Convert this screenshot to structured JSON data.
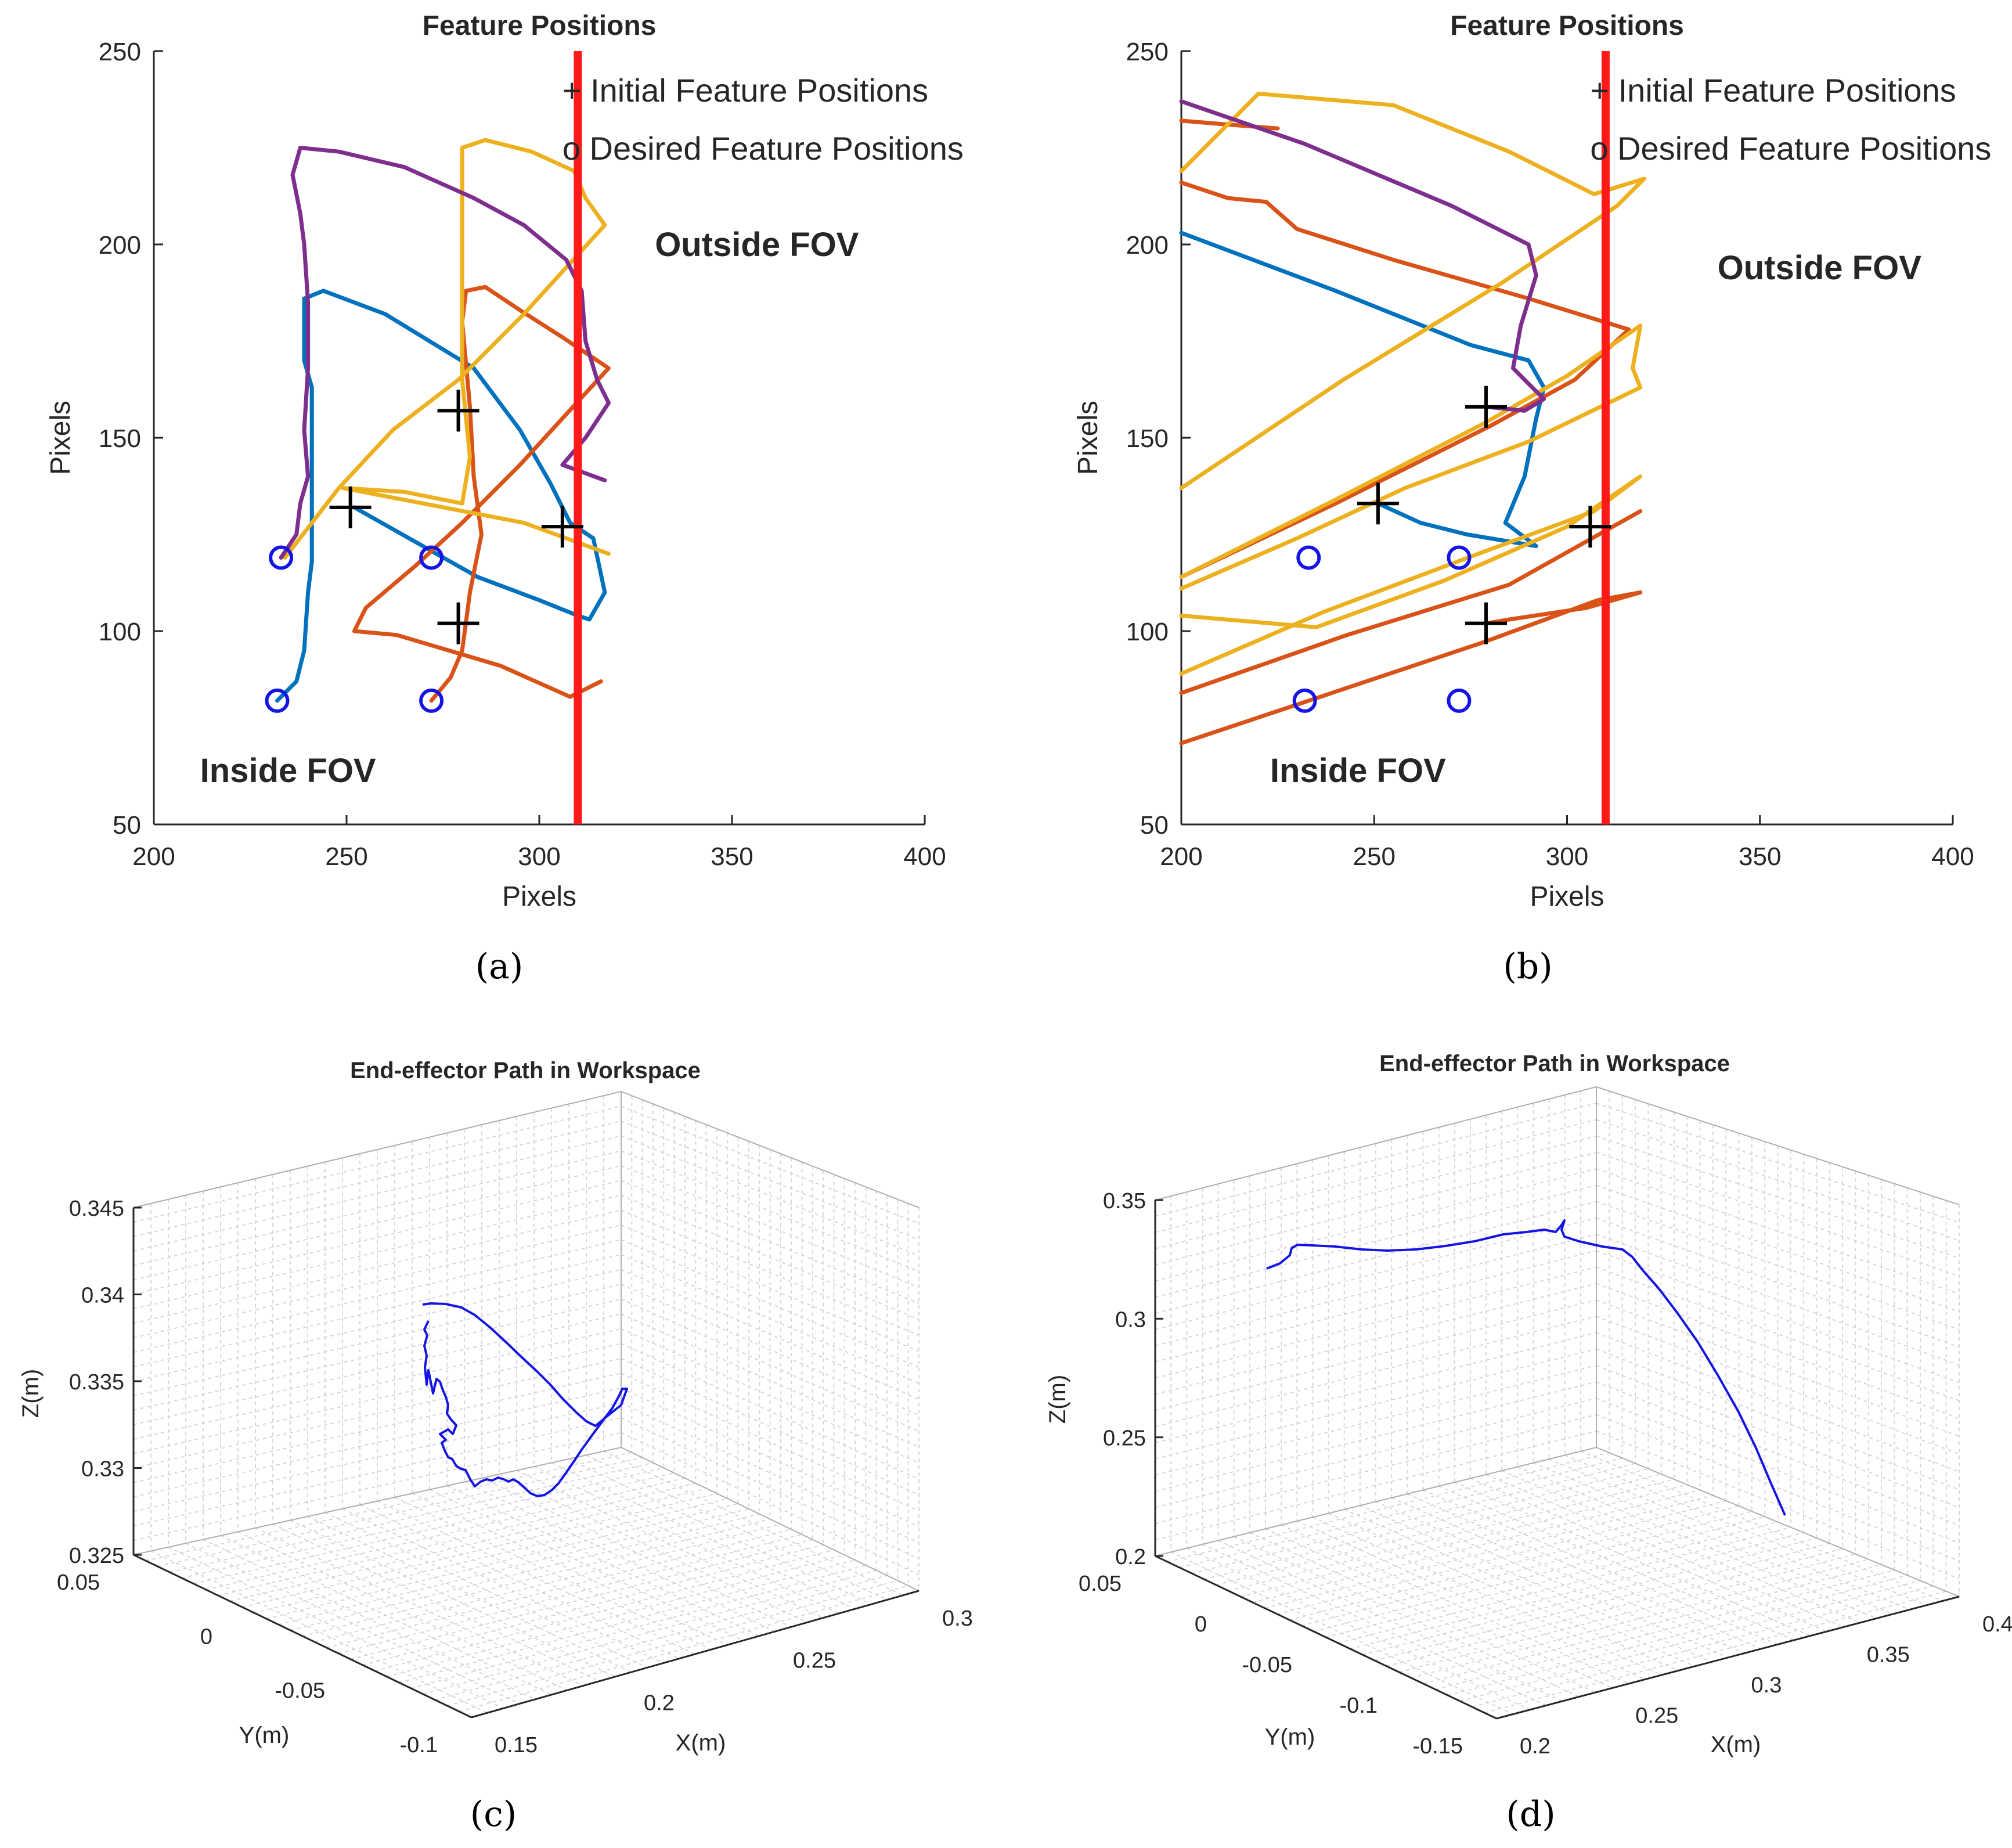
{
  "figure": {
    "captions": [
      "(a)",
      "(b)",
      "(c)",
      "(d)"
    ],
    "colors": {
      "blue": "#0072BD",
      "orange": "#D95319",
      "yellow": "#EDB120",
      "purple": "#7E2F8E",
      "fov_line": "#FF1A1A",
      "fov_text": "#E8222A",
      "path3d": "#1414E6",
      "desired_marker": "#1414E6",
      "initial_marker": "#000000"
    }
  },
  "chart_data": [
    {
      "type": "line",
      "title": "Feature Positions",
      "xlabel": "Pixels",
      "ylabel": "Pixels",
      "xlim": [
        200,
        400
      ],
      "ylim": [
        50,
        250
      ],
      "xticks": [
        200,
        250,
        300,
        350,
        400
      ],
      "yticks": [
        50,
        100,
        150,
        200,
        250
      ],
      "legend": [
        "+ Initial Feature Positions",
        "o Desired Feature Positions"
      ],
      "fov_line_x": 310,
      "annotations": [
        {
          "text": "Outside FOV",
          "x": 330,
          "y": 200
        },
        {
          "text": "Inside FOV",
          "x": 212,
          "y": 64
        }
      ],
      "initial_points": [
        [
          279,
          157
        ],
        [
          251,
          132
        ],
        [
          306,
          127
        ],
        [
          279,
          102
        ]
      ],
      "desired_points": [
        [
          233,
          119
        ],
        [
          272,
          119
        ],
        [
          232,
          82
        ],
        [
          272,
          82
        ]
      ],
      "series": [
        {
          "name": "feature-1",
          "color": "blue",
          "points": [
            [
              232,
              82
            ],
            [
              237,
              87
            ],
            [
              239,
              95
            ],
            [
              240,
              110
            ],
            [
              241,
              118
            ],
            [
              241,
              130
            ],
            [
              241,
              145
            ],
            [
              241,
              163
            ],
            [
              239,
              170
            ],
            [
              239,
              186
            ],
            [
              244,
              188
            ],
            [
              260,
              182
            ],
            [
              283,
              168
            ],
            [
              295,
              152
            ],
            [
              303,
              138
            ],
            [
              308,
              128
            ],
            [
              314,
              124
            ],
            [
              317,
              110
            ],
            [
              313,
              103
            ],
            [
              310,
              104
            ],
            [
              300,
              108
            ],
            [
              284,
              114
            ],
            [
              268,
              123
            ],
            [
              252,
              132
            ]
          ]
        },
        {
          "name": "feature-2",
          "color": "orange",
          "points": [
            [
              272,
              82
            ],
            [
              277,
              88
            ],
            [
              280,
              95
            ],
            [
              282,
              110
            ],
            [
              285,
              125
            ],
            [
              283,
              140
            ],
            [
              282,
              158
            ],
            [
              280,
              180
            ],
            [
              281,
              188
            ],
            [
              286,
              189
            ],
            [
              295,
              183
            ],
            [
              306,
              176
            ],
            [
              318,
              168
            ],
            [
              306,
              155
            ],
            [
              295,
              143
            ],
            [
              280,
              128
            ],
            [
              268,
              117
            ],
            [
              255,
              106
            ],
            [
              252,
              100
            ],
            [
              263,
              99
            ],
            [
              290,
              91
            ],
            [
              308,
              83
            ],
            [
              316,
              87
            ]
          ]
        },
        {
          "name": "feature-3",
          "color": "yellow",
          "points": [
            [
              234,
              119
            ],
            [
              248,
              137
            ],
            [
              262,
              152
            ],
            [
              279,
              165
            ],
            [
              296,
              182
            ],
            [
              317,
              205
            ],
            [
              312,
              212
            ],
            [
              309,
              219
            ],
            [
              298,
              224
            ],
            [
              286,
              227
            ],
            [
              280,
              225
            ],
            [
              280,
              210
            ],
            [
              280,
              188
            ],
            [
              280,
              165
            ],
            [
              282,
              145
            ],
            [
              280,
              133
            ],
            [
              265,
              136
            ],
            [
              249,
              137
            ],
            [
              296,
              128
            ],
            [
              318,
              120
            ]
          ]
        },
        {
          "name": "feature-4",
          "color": "purple",
          "points": [
            [
              233,
              119
            ],
            [
              237,
              125
            ],
            [
              238,
              133
            ],
            [
              240,
              140
            ],
            [
              239,
              152
            ],
            [
              240,
              168
            ],
            [
              240,
              185
            ],
            [
              239,
              200
            ],
            [
              238,
              208
            ],
            [
              236,
              218
            ],
            [
              238,
              225
            ],
            [
              248,
              224
            ],
            [
              265,
              220
            ],
            [
              283,
              212
            ],
            [
              296,
              205
            ],
            [
              307,
              196
            ],
            [
              311,
              188
            ],
            [
              312,
              175
            ],
            [
              315,
              165
            ],
            [
              318,
              159
            ],
            [
              312,
              150
            ],
            [
              306,
              143
            ],
            [
              317,
              139
            ]
          ]
        }
      ]
    },
    {
      "type": "line",
      "title": "Feature Positions",
      "xlabel": "Pixels",
      "ylabel": "Pixels",
      "xlim": [
        200,
        400
      ],
      "ylim": [
        50,
        250
      ],
      "xticks": [
        200,
        250,
        300,
        350,
        400
      ],
      "yticks": [
        50,
        100,
        150,
        200,
        250
      ],
      "legend": [
        "+ Initial Feature Positions",
        "o Desired Feature Positions"
      ],
      "fov_line_x": 310,
      "annotations": [
        {
          "text": "Outside FOV",
          "x": 339,
          "y": 194
        },
        {
          "text": "Inside FOV",
          "x": 223,
          "y": 64
        }
      ],
      "initial_points": [
        [
          279,
          158
        ],
        [
          251,
          133
        ],
        [
          306,
          127
        ],
        [
          279,
          102
        ]
      ],
      "desired_points": [
        [
          233,
          119
        ],
        [
          272,
          119
        ],
        [
          232,
          82
        ],
        [
          272,
          82
        ]
      ],
      "series": [
        {
          "name": "feature-1",
          "color": "blue",
          "points": [
            [
              200,
              203
            ],
            [
              240,
              188
            ],
            [
              275,
              174
            ],
            [
              290,
              170
            ],
            [
              294,
              163
            ],
            [
              292,
              155
            ],
            [
              289,
              140
            ],
            [
              284,
              128
            ],
            [
              292,
              122
            ],
            [
              274,
              125
            ],
            [
              262,
              128
            ],
            [
              251,
              133
            ]
          ]
        },
        {
          "name": "feature-2",
          "color": "orange",
          "points": [
            [
              200,
              71
            ],
            [
              239,
              84
            ],
            [
              278,
              97
            ],
            [
              308,
              108
            ],
            [
              319,
              110
            ],
            [
              305,
              106
            ],
            [
              285,
              103
            ],
            [
              279,
              102
            ]
          ]
        },
        {
          "name": "feature-3",
          "color": "orange",
          "points": [
            [
              200,
              84
            ],
            [
              243,
              99
            ],
            [
              285,
              112
            ],
            [
              319,
              131
            ]
          ]
        },
        {
          "name": "feature-4",
          "color": "orange",
          "points": [
            [
              200,
              114
            ],
            [
              240,
              133
            ],
            [
              280,
              153
            ],
            [
              302,
              165
            ],
            [
              316,
              178
            ],
            [
              290,
              186
            ],
            [
              255,
              196
            ],
            [
              230,
              204
            ],
            [
              222,
              211
            ],
            [
              212,
              212
            ],
            [
              200,
              216
            ]
          ]
        },
        {
          "name": "feature-5",
          "color": "orange",
          "points": [
            [
              200,
              232
            ],
            [
              212,
              231
            ],
            [
              225,
              230
            ]
          ]
        },
        {
          "name": "feature-6",
          "color": "yellow",
          "points": [
            [
              200,
              89
            ],
            [
              237,
              105
            ],
            [
              277,
              120
            ],
            [
              307,
              131
            ],
            [
              319,
              140
            ],
            [
              300,
              127
            ],
            [
              268,
              113
            ],
            [
              235,
              101
            ],
            [
              200,
              104
            ]
          ]
        },
        {
          "name": "feature-7",
          "color": "yellow",
          "points": [
            [
              200,
              114
            ],
            [
              240,
              134
            ],
            [
              279,
              154
            ],
            [
              300,
              166
            ],
            [
              319,
              179
            ],
            [
              317,
              168
            ],
            [
              319,
              163
            ],
            [
              290,
              149
            ],
            [
              258,
              137
            ],
            [
              230,
              124
            ],
            [
              200,
              111
            ]
          ]
        },
        {
          "name": "feature-8",
          "color": "yellow",
          "points": [
            [
              200,
              137
            ],
            [
              242,
              165
            ],
            [
              283,
              190
            ],
            [
              313,
              210
            ],
            [
              320,
              217
            ],
            [
              307,
              213
            ],
            [
              285,
              224
            ],
            [
              255,
              236
            ],
            [
              220,
              239
            ],
            [
              200,
              219
            ]
          ]
        },
        {
          "name": "feature-9",
          "color": "purple",
          "points": [
            [
              200,
              237
            ],
            [
              232,
              226
            ],
            [
              270,
              210
            ],
            [
              290,
              200
            ],
            [
              292,
              192
            ],
            [
              288,
              179
            ],
            [
              286,
              168
            ],
            [
              294,
              160
            ],
            [
              289,
              157
            ],
            [
              279,
              158
            ]
          ]
        }
      ]
    },
    {
      "type": "line3d",
      "title": "End-effector Path in Workspace",
      "xlabel": "X(m)",
      "ylabel": "Y(m)",
      "zlabel": "Z(m)",
      "xticks": [
        "0.15",
        "0.2",
        "0.25",
        "0.3"
      ],
      "yticks": [
        "0.05",
        "0",
        "-0.05",
        "-0.1"
      ],
      "zticks": [
        "0.345",
        "0.34",
        "0.335",
        "0.33",
        "0.325"
      ],
      "zlim": [
        0.325,
        0.345
      ]
    },
    {
      "type": "line3d",
      "title": "End-effector Path in Workspace",
      "xlabel": "X(m)",
      "ylabel": "Y(m)",
      "zlabel": "Z(m)",
      "xticks": [
        "0.2",
        "0.25",
        "0.3",
        "0.35",
        "0.4"
      ],
      "yticks": [
        "0.05",
        "0",
        "-0.05",
        "-0.1",
        "-0.15"
      ],
      "zticks": [
        "0.35",
        "0.3",
        "0.25",
        "0.2"
      ],
      "zlim": [
        0.2,
        0.35
      ]
    }
  ]
}
